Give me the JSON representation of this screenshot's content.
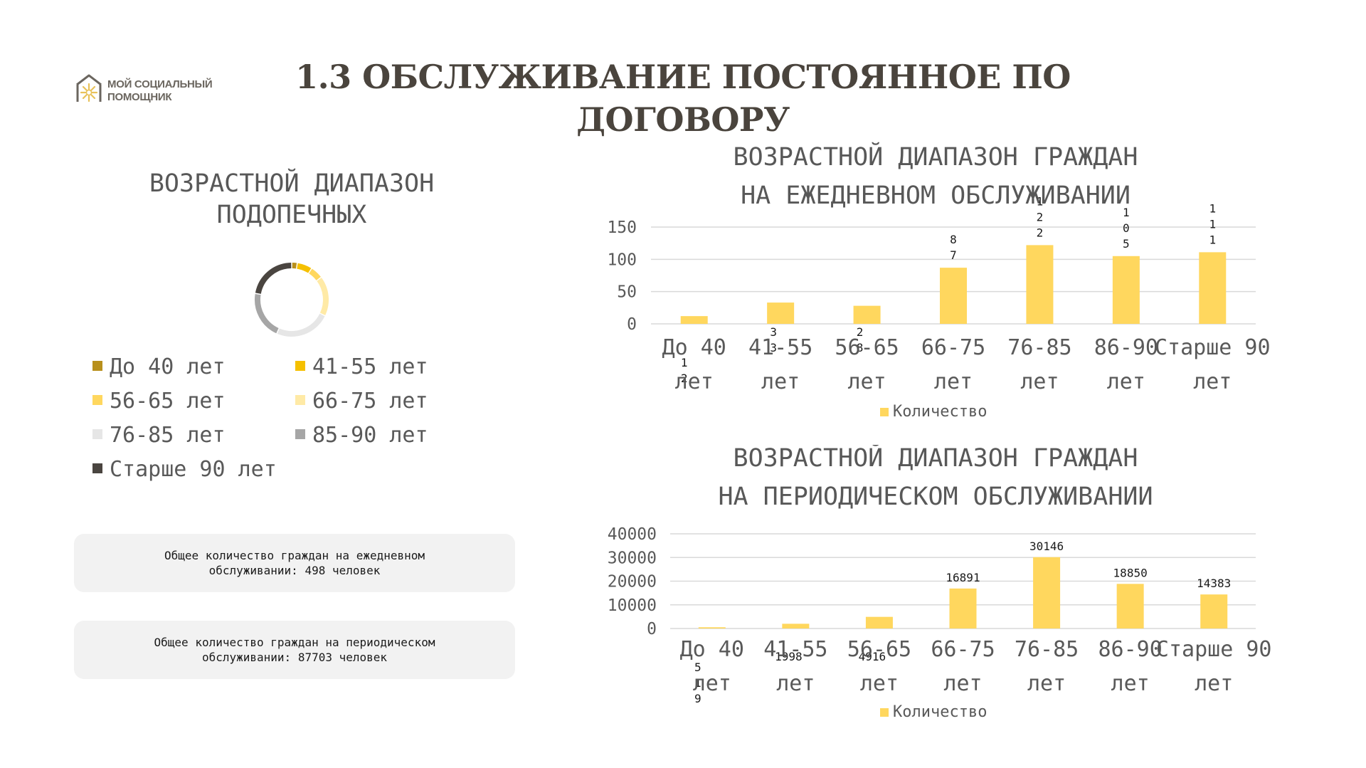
{
  "logo": {
    "line1": "МОЙ СОЦИАЛЬНЫЙ",
    "line2": "ПОМОЩНИК",
    "icon": "sun-house-icon"
  },
  "page_title": "1.3 ОБСЛУЖИВАНИЕ ПОСТОЯННОЕ ПО ДОГОВОРУ",
  "colors": {
    "accent": "#ffd75e",
    "text": "#4a443d",
    "panel": "#f2f2f2"
  },
  "summaries": {
    "daily": "Общее количество граждан на ежедневном обслуживании: 498 человек",
    "periodic": "Общее количество граждан на периодическом обслуживании: 87703 человек"
  },
  "chart_data": [
    {
      "type": "pie",
      "title": "ВОЗРАСТНОЙ ДИАПАЗОН ПОДОПЕЧНЫХ",
      "legend_position": "bottom",
      "categories": [
        "До 40 лет",
        "41-55 лет",
        "56-65 лет",
        "66-75 лет",
        "76-85 лет",
        "85-90 лет",
        "Старше 90 лет"
      ],
      "values": [
        12,
        33,
        28,
        87,
        122,
        105,
        111
      ],
      "colors": [
        "#b8901c",
        "#f5c000",
        "#ffd75e",
        "#ffeaa6",
        "#e6e6e6",
        "#a6a6a6",
        "#4a4540"
      ]
    },
    {
      "type": "bar",
      "title": "ВОЗРАСТНОЙ ДИАПАЗОН ГРАЖДАН НА ЕЖЕДНЕВНОМ ОБСЛУЖИВАНИИ",
      "categories": [
        "До 40 лет",
        "41-55 лет",
        "56-65 лет",
        "66-75 лет",
        "76-85 лет",
        "86-90 лет",
        "Старше 90 лет"
      ],
      "series": [
        {
          "name": "Количество",
          "values": [
            12,
            33,
            28,
            87,
            122,
            105,
            111
          ]
        }
      ],
      "yticks": [
        0,
        50,
        100,
        150
      ],
      "ylim": [
        0,
        150
      ],
      "grid": true,
      "legend_position": "bottom"
    },
    {
      "type": "bar",
      "title": "ВОЗРАСТНОЙ ДИАПАЗОН ГРАЖДАН НА ПЕРИОДИЧЕСКОМ ОБСЛУЖИВАНИИ",
      "categories": [
        "До 40 лет",
        "41-55 лет",
        "56-65 лет",
        "66-75 лет",
        "76-85 лет",
        "86-90 лет",
        "Старше 90 лет"
      ],
      "series": [
        {
          "name": "Количество",
          "values": [
            519,
            1998,
            4916,
            16891,
            30146,
            18850,
            14383
          ]
        }
      ],
      "yticks": [
        0,
        10000,
        20000,
        30000,
        40000
      ],
      "ylim": [
        0,
        40000
      ],
      "grid": true,
      "legend_position": "bottom"
    }
  ]
}
